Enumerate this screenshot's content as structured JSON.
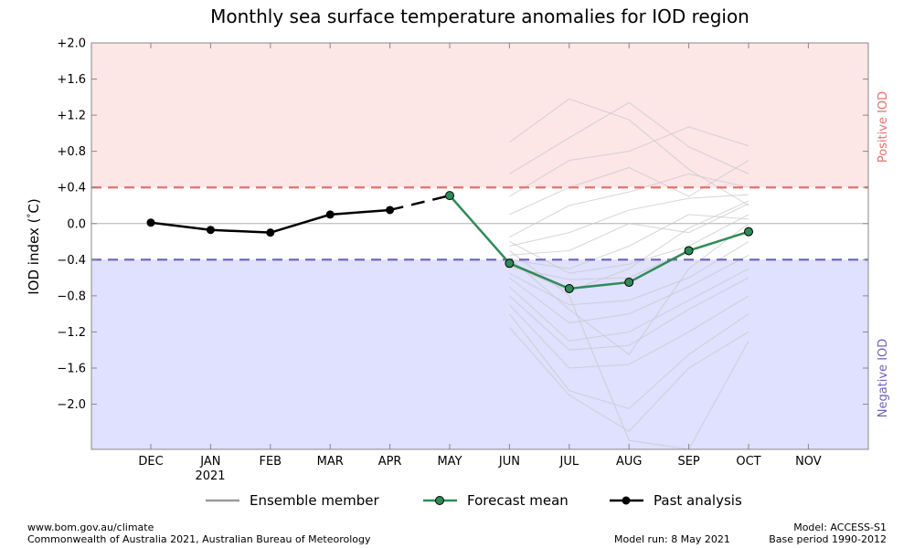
{
  "chart_data": {
    "type": "line",
    "title": "Monthly sea surface temperature anomalies for IOD region",
    "ylabel": "IOD index (°C)",
    "ylabel_text": "IOD index (",
    "ylabel_unit": "C)",
    "ylabel_degree": "°",
    "ylim": [
      -2.5,
      2.0
    ],
    "yticks": [
      "+2.0",
      "+1.6",
      "+1.2",
      "+0.8",
      "+0.4",
      "0.0",
      "−0.4",
      "−0.8",
      "−1.2",
      "−1.6",
      "−2.0"
    ],
    "ytick_values": [
      2.0,
      1.6,
      1.2,
      0.8,
      0.4,
      0.0,
      -0.4,
      -0.8,
      -1.2,
      -1.6,
      -2.0
    ],
    "categories": [
      "DEC",
      "JAN",
      "FEB",
      "MAR",
      "APR",
      "MAY",
      "JUN",
      "JUL",
      "AUG",
      "SEP",
      "OCT",
      "NOV"
    ],
    "year_label": "2021",
    "thresholds": {
      "positive": 0.4,
      "negative": -0.4
    },
    "zones": {
      "positive_label": "Positive IOD",
      "negative_label": "Negative IOD"
    },
    "grid": false,
    "legend_position": "bottom",
    "legend": [
      "Ensemble member",
      "Forecast mean",
      "Past analysis"
    ],
    "series": [
      {
        "name": "Past analysis",
        "x": [
          "DEC",
          "JAN",
          "FEB",
          "MAR",
          "APR"
        ],
        "values": [
          0.01,
          -0.07,
          -0.1,
          0.1,
          0.15
        ]
      },
      {
        "name": "Forecast mean",
        "x": [
          "MAY",
          "JUN",
          "JUL",
          "AUG",
          "SEP",
          "OCT"
        ],
        "values": [
          0.31,
          -0.44,
          -0.72,
          -0.65,
          -0.3,
          -0.09
        ]
      }
    ],
    "ensemble_members": {
      "x": [
        "JUN",
        "JUL",
        "AUG",
        "SEP",
        "OCT"
      ],
      "members": [
        [
          0.9,
          1.38,
          1.15,
          0.6,
          0.2
        ],
        [
          0.55,
          0.95,
          1.34,
          0.85,
          0.55
        ],
        [
          0.3,
          0.7,
          0.8,
          1.07,
          0.86
        ],
        [
          0.1,
          0.4,
          0.62,
          0.3,
          0.7
        ],
        [
          -0.15,
          0.2,
          0.35,
          0.55,
          0.4
        ],
        [
          -0.25,
          -0.1,
          0.15,
          0.28,
          0.32
        ],
        [
          -0.35,
          -0.3,
          0.0,
          -0.1,
          0.22
        ],
        [
          -0.4,
          -0.5,
          -0.25,
          0.1,
          0.05
        ],
        [
          -0.48,
          -0.62,
          -0.6,
          -0.3,
          -0.1
        ],
        [
          -0.55,
          -0.9,
          -0.85,
          -0.6,
          -0.2
        ],
        [
          -0.6,
          -1.1,
          -1.0,
          -0.7,
          -0.35
        ],
        [
          -0.7,
          -1.3,
          -1.2,
          -0.85,
          -0.5
        ],
        [
          -0.8,
          -1.4,
          -1.35,
          -0.95,
          -0.6
        ],
        [
          -0.9,
          -1.6,
          -1.56,
          -1.2,
          -0.8
        ],
        [
          -1.0,
          -1.85,
          -2.05,
          -1.45,
          -1.0
        ],
        [
          -1.15,
          -1.9,
          -2.3,
          -1.6,
          -1.2
        ],
        [
          -0.3,
          -0.8,
          -2.4,
          -2.5,
          -1.3
        ],
        [
          -0.2,
          -0.55,
          -0.45,
          -0.25,
          0.1
        ],
        [
          -0.45,
          -0.75,
          -0.5,
          -0.05,
          0.25
        ],
        [
          -0.38,
          -0.95,
          -1.45,
          -0.5,
          0.0
        ]
      ]
    }
  },
  "footer": {
    "left_line1": "www.bom.gov.au/climate",
    "left_line2": "Commonwealth of Australia 2021, Australian Bureau of Meteorology",
    "model_run": "Model run: 8 May 2021",
    "model": "Model: ACCESS-S1",
    "base_period": "Base period 1990-2012"
  },
  "colors": {
    "positive_zone": "#fde6e6",
    "negative_zone": "#e0e0ff",
    "positive_line": "#e8706a",
    "negative_line": "#6b63b8",
    "positive_text": "#e8706a",
    "negative_text": "#6b63b8",
    "forecast_line": "#2e8b57",
    "forecast_marker": "#2e8b57",
    "past_line": "#000000",
    "ensemble": "#c8c8c8",
    "legend_ensemble": "#999999"
  }
}
